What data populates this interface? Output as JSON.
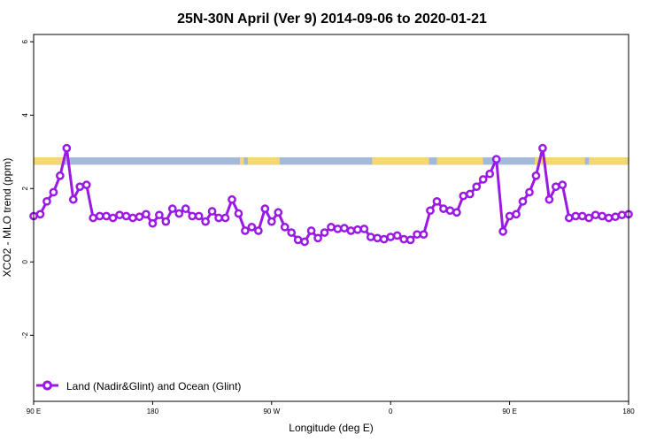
{
  "chart_data": {
    "type": "line",
    "title": "25N-30N April (Ver 9)   2014-09-06 to 2020-01-21",
    "xlabel": "Longitude (deg E)",
    "ylabel": "XCO2 - MLO trend (ppm)",
    "xlim": [
      90,
      540
    ],
    "ylim": [
      -3.8,
      6.2
    ],
    "x_ticks": [
      {
        "value": 90,
        "label": "90 E"
      },
      {
        "value": 180,
        "label": "180"
      },
      {
        "value": 270,
        "label": "90 W"
      },
      {
        "value": 360,
        "label": "0"
      },
      {
        "value": 450,
        "label": "90 E"
      },
      {
        "value": 540,
        "label": "180"
      }
    ],
    "y_ticks": [
      {
        "value": -2,
        "label": "-2"
      },
      {
        "value": 0,
        "label": "0"
      },
      {
        "value": 2,
        "label": "2"
      },
      {
        "value": 4,
        "label": "4"
      },
      {
        "value": 6,
        "label": "6"
      }
    ],
    "band": {
      "y_range": [
        2.65,
        2.85
      ],
      "ocean_color": "#a2b9d9",
      "land_color": "#f3d773",
      "land_segments": [
        [
          90,
          117
        ],
        [
          246,
          276
        ],
        [
          346,
          430
        ],
        [
          469,
          540
        ]
      ],
      "ocean_segments_in_land": [
        [
          112,
          115
        ],
        [
          249,
          252
        ],
        [
          389,
          395
        ],
        [
          507,
          510
        ]
      ]
    },
    "series": [
      {
        "name": "Land (Nadir&Glint) and Ocean (Glint)",
        "color": "#9b19e5",
        "x": [
          90,
          95,
          100,
          105,
          110,
          115,
          120,
          125,
          130,
          135,
          140,
          145,
          150,
          155,
          160,
          165,
          170,
          175,
          180,
          185,
          190,
          195,
          200,
          205,
          210,
          215,
          220,
          225,
          230,
          235,
          240,
          245,
          250,
          255,
          260,
          265,
          270,
          275,
          280,
          285,
          290,
          295,
          300,
          305,
          310,
          315,
          320,
          325,
          330,
          335,
          340,
          345,
          350,
          355,
          360,
          365,
          370,
          375,
          380,
          385,
          390,
          395,
          400,
          405,
          410,
          415,
          420,
          425,
          430,
          435,
          440,
          445,
          450,
          455,
          460,
          465,
          470,
          475,
          480,
          485,
          490,
          495,
          500,
          505,
          510,
          515,
          520,
          525,
          530,
          535,
          540
        ],
        "values": [
          1.25,
          1.3,
          1.65,
          1.9,
          2.35,
          3.1,
          1.7,
          2.05,
          2.1,
          1.2,
          1.25,
          1.25,
          1.2,
          1.28,
          1.25,
          1.2,
          1.23,
          1.3,
          1.05,
          1.28,
          1.1,
          1.45,
          1.32,
          1.45,
          1.25,
          1.25,
          1.1,
          1.38,
          1.2,
          1.2,
          1.7,
          1.32,
          0.85,
          0.95,
          0.85,
          1.45,
          1.1,
          1.35,
          0.95,
          0.8,
          0.6,
          0.55,
          0.85,
          0.65,
          0.8,
          0.95,
          0.9,
          0.92,
          0.85,
          0.88,
          0.9,
          0.68,
          0.65,
          0.62,
          0.68,
          0.72,
          0.62,
          0.6,
          0.75,
          0.75,
          1.4,
          1.65,
          1.45,
          1.4,
          1.35,
          1.8,
          1.85,
          2.05,
          2.25,
          2.4,
          2.8,
          0.83,
          1.25,
          1.3,
          1.65,
          1.9,
          2.35,
          3.1,
          1.7,
          2.05,
          2.1,
          1.2,
          1.25,
          1.25,
          1.2,
          1.28,
          1.25,
          1.2,
          1.23,
          1.28,
          1.3
        ]
      }
    ],
    "legend": {
      "position": "bottom-left"
    }
  }
}
